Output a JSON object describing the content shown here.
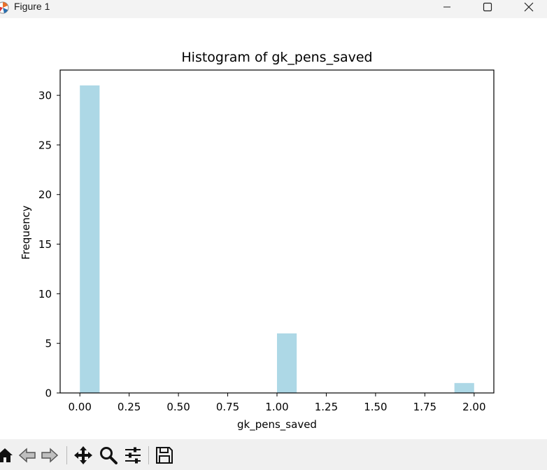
{
  "window": {
    "title": "Figure 1"
  },
  "chart_data": {
    "type": "bar",
    "title": "Histogram of gk_pens_saved",
    "xlabel": "gk_pens_saved",
    "ylabel": "Frequency",
    "bar_color": "#add8e6",
    "bars": [
      {
        "x": 0.05,
        "width": 0.1,
        "value": 31
      },
      {
        "x": 1.05,
        "width": 0.1,
        "value": 6
      },
      {
        "x": 1.95,
        "width": 0.1,
        "value": 1
      }
    ],
    "xlim": [
      -0.1,
      2.1
    ],
    "ylim": [
      0,
      32.55
    ],
    "xticks": [
      0.0,
      0.25,
      0.5,
      0.75,
      1.0,
      1.25,
      1.5,
      1.75,
      2.0
    ],
    "xtick_labels": [
      "0.00",
      "0.25",
      "0.50",
      "0.75",
      "1.00",
      "1.25",
      "1.50",
      "1.75",
      "2.00"
    ],
    "yticks": [
      0,
      5,
      10,
      15,
      20,
      25,
      30
    ],
    "ytick_labels": [
      "0",
      "5",
      "10",
      "15",
      "20",
      "25",
      "30"
    ],
    "grid": false,
    "legend": false
  },
  "toolbar": {
    "tools": [
      "home-icon",
      "back-icon",
      "forward-icon",
      "pan-icon",
      "zoom-icon",
      "configure-icon",
      "save-icon"
    ]
  }
}
